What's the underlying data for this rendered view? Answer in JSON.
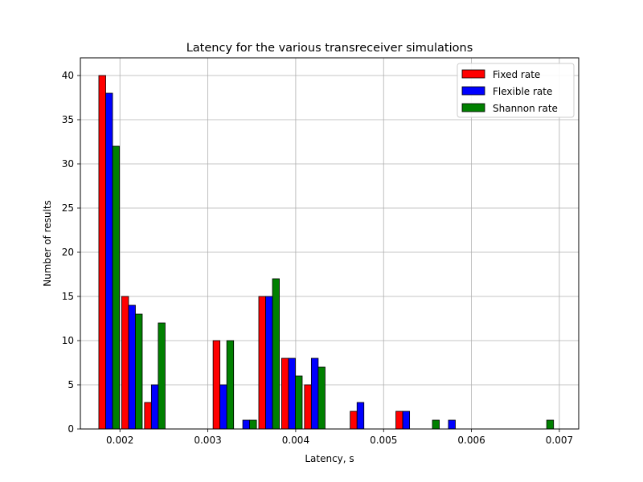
{
  "chart_data": {
    "type": "bar",
    "title": "Latency for the various transreceiver simulations",
    "xlabel": "Latency, s",
    "ylabel": "Number of results",
    "xlim": [
      0.00155,
      0.00722
    ],
    "ylim": [
      0,
      42
    ],
    "xticks": [
      {
        "value": 0.002,
        "label": "0.002"
      },
      {
        "value": 0.003,
        "label": "0.003"
      },
      {
        "value": 0.004,
        "label": "0.004"
      },
      {
        "value": 0.005,
        "label": "0.005"
      },
      {
        "value": 0.006,
        "label": "0.006"
      },
      {
        "value": 0.007,
        "label": "0.007"
      }
    ],
    "yticks": [
      {
        "value": 0,
        "label": "0"
      },
      {
        "value": 5,
        "label": "5"
      },
      {
        "value": 10,
        "label": "10"
      },
      {
        "value": 15,
        "label": "15"
      },
      {
        "value": 20,
        "label": "20"
      },
      {
        "value": 25,
        "label": "25"
      },
      {
        "value": 30,
        "label": "30"
      },
      {
        "value": 35,
        "label": "35"
      },
      {
        "value": 40,
        "label": "40"
      }
    ],
    "grid": true,
    "legend_position": "top-right",
    "bin_edges": [
      0.00176,
      0.00202,
      0.00228,
      0.00254,
      0.0028,
      0.00306,
      0.00332,
      0.00358,
      0.00384,
      0.0041,
      0.00436,
      0.00462,
      0.00488,
      0.00514,
      0.0054,
      0.00566,
      0.00592,
      0.00618,
      0.00644,
      0.0067,
      0.00696
    ],
    "series": [
      {
        "name": "Fixed rate",
        "color": "#ff0000",
        "values": [
          40,
          15,
          3,
          0,
          0,
          10,
          0,
          15,
          8,
          5,
          0,
          2,
          0,
          2,
          0,
          0,
          0,
          0,
          0,
          0
        ]
      },
      {
        "name": "Flexible rate",
        "color": "#0000ff",
        "values": [
          38,
          14,
          5,
          0,
          0,
          5,
          1,
          15,
          8,
          8,
          0,
          3,
          0,
          2,
          0,
          1,
          0,
          0,
          0,
          0
        ]
      },
      {
        "name": "Shannon rate",
        "color": "#008000",
        "values": [
          32,
          13,
          12,
          0,
          0,
          10,
          1,
          17,
          6,
          7,
          0,
          0,
          0,
          0,
          1,
          0,
          0,
          0,
          0,
          1
        ]
      }
    ]
  }
}
